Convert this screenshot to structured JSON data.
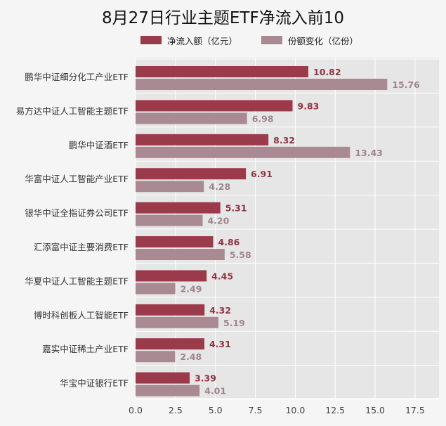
{
  "chart_data": {
    "type": "bar",
    "orientation": "horizontal",
    "title": "8月27日行业主题ETF净流入前10",
    "categories": [
      "鹏华中证细分化工产业ETF",
      "易方达中证人工智能主题ETF",
      "鹏华中证酒ETF",
      "华富中证人工智能产业ETF",
      "银华中证全指证券公司ETF",
      "汇添富中证主要消费ETF",
      "华夏中证人工智能主题ETF",
      "博时科创板人工智能ETF",
      "嘉实中证稀土产业ETF",
      "华宝中证银行ETF"
    ],
    "series": [
      {
        "name": "净流入额（亿元）",
        "color": "#9b3a4a",
        "label_color": "#8e3545",
        "values": [
          10.82,
          9.83,
          8.32,
          6.91,
          5.31,
          4.86,
          4.45,
          4.32,
          4.31,
          3.39
        ]
      },
      {
        "name": "份额变化（亿份）",
        "color": "#a98a93",
        "label_color": "#a0848d",
        "values": [
          15.76,
          6.98,
          13.43,
          4.28,
          4.2,
          5.58,
          2.49,
          5.19,
          2.48,
          4.01
        ]
      }
    ],
    "value_labels": [
      [
        "10.82",
        "9.83",
        "8.32",
        "6.91",
        "5.31",
        "4.86",
        "4.45",
        "4.32",
        "4.31",
        "3.39"
      ],
      [
        "15.76",
        "6.98",
        "13.43",
        "4.28",
        "4.20",
        "5.58",
        "2.49",
        "5.19",
        "2.48",
        "4.01"
      ]
    ],
    "xlim": [
      0,
      19
    ],
    "xticks": [
      0,
      2.5,
      5,
      7.5,
      10,
      12.5,
      15,
      17.5
    ],
    "xtick_labels": [
      "0.0",
      "2.5",
      "5.0",
      "7.5",
      "10.0",
      "12.5",
      "15.0",
      "17.5"
    ],
    "grid": true,
    "legend_position": "top",
    "plot_background": "#e6e6e6",
    "grid_color": "#ffffff"
  }
}
